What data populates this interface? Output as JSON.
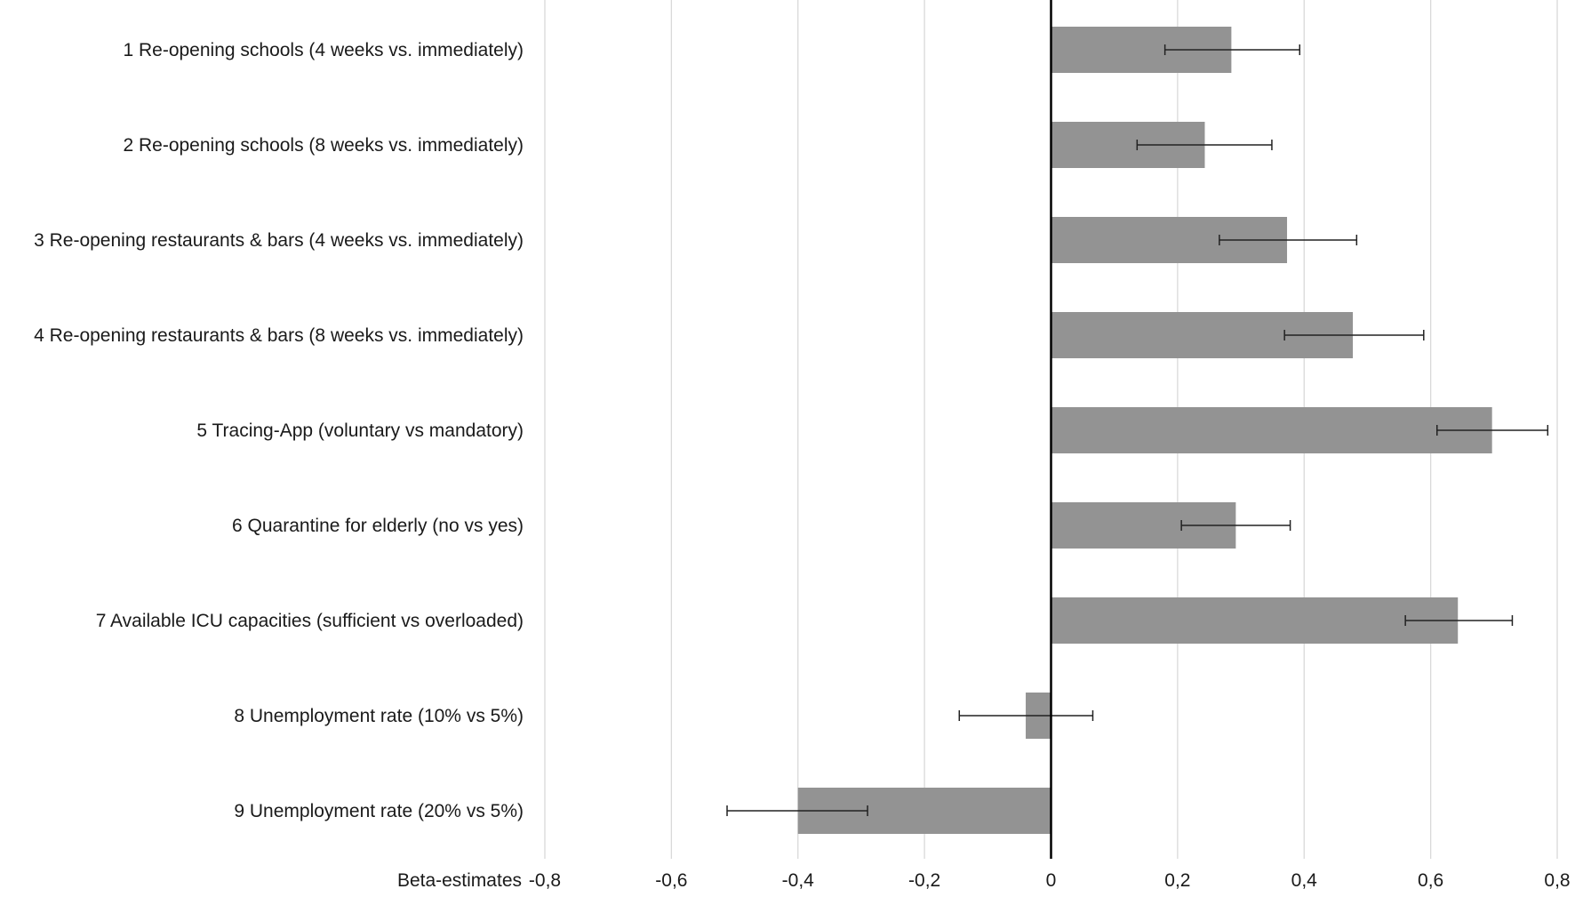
{
  "chart_data": {
    "type": "bar",
    "orientation": "horizontal",
    "xlabel": "Beta-estimates",
    "xlim": [
      -0.8,
      0.8
    ],
    "x_ticks": [
      -0.8,
      -0.6,
      -0.4,
      -0.2,
      0,
      0.2,
      0.4,
      0.6,
      0.8
    ],
    "x_tick_labels": [
      "-0,8",
      "-0,6",
      "-0,4",
      "-0,2",
      "0",
      "0,2",
      "0,4",
      "0,6",
      "0,8"
    ],
    "grid": true,
    "categories": [
      "1 Re-opening schools (4 weeks vs. immediately)",
      "2 Re-opening schools (8 weeks vs. immediately)",
      "3 Re-opening restaurants & bars (4 weeks vs. immediately)",
      "4 Re-opening restaurants & bars (8 weeks vs. immediately)",
      "5 Tracing-App (voluntary vs mandatory)",
      "6 Quarantine for elderly (no vs yes)",
      "7 Available ICU capacities (sufficient vs overloaded)",
      "8 Unemployment rate (10% vs 5%)",
      "9 Unemployment rate (20% vs 5%)"
    ],
    "values": [
      0.285,
      0.243,
      0.373,
      0.477,
      0.697,
      0.292,
      0.643,
      -0.04,
      -0.4
    ],
    "ci_low": [
      0.18,
      0.136,
      0.266,
      0.369,
      0.61,
      0.206,
      0.56,
      -0.145,
      -0.512
    ],
    "ci_high": [
      0.393,
      0.349,
      0.483,
      0.589,
      0.785,
      0.378,
      0.729,
      0.066,
      -0.29
    ],
    "colors": {
      "bar": "#939393",
      "grid": "#d9d9d9",
      "axis": "#000000",
      "errorbar": "#222222"
    }
  }
}
